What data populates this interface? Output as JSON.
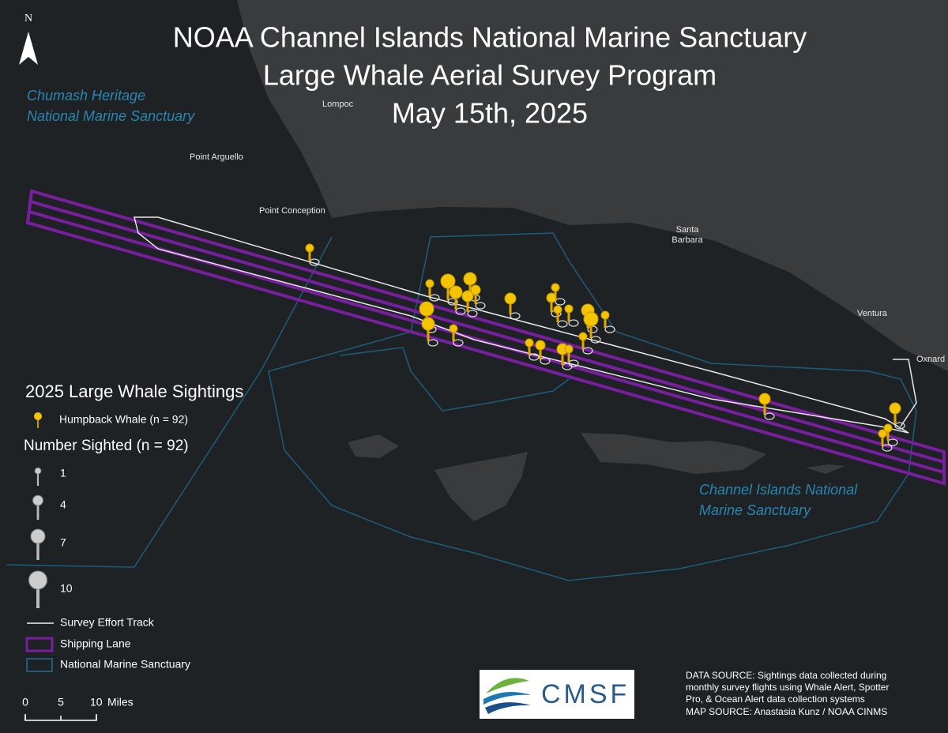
{
  "title": [
    "NOAA Channel Islands National Marine Sanctuary",
    "Large Whale Aerial Survey Program",
    "May 15th, 2025"
  ],
  "north_label": "N",
  "places": {
    "lompoc": "Lompoc",
    "point_arguello": "Point Arguello",
    "point_conception": "Point Conception",
    "santa_barbara": [
      "Santa",
      "Barbara"
    ],
    "ventura": "Ventura",
    "oxnard": "Oxnard"
  },
  "sanctuaries": {
    "chumash": [
      "Chumash Heritage",
      "National Marine Sanctuary"
    ],
    "channel_islands": [
      "Channel Islands National",
      "Marine Sanctuary"
    ]
  },
  "legend": {
    "title": "2025 Large Whale Sightings",
    "species": "Humpback Whale (n = 92)",
    "size_title": "Number Sighted (n = 92)",
    "sizes": [
      1,
      4,
      7,
      10
    ],
    "track": "Survey Effort Track",
    "lane": "Shipping Lane",
    "sanctuary": "National Marine Sanctuary"
  },
  "scale_bar": {
    "ticks": [
      0,
      5,
      10
    ],
    "unit": "Miles"
  },
  "data_source": [
    "DATA SOURCE: Sightings data collected during",
    "monthly survey flights using Whale Alert, Spotter",
    "Pro, & Ocean Alert data collection systems",
    "MAP SOURCE: Anastasia Kunz / NOAA CINMS"
  ],
  "logo": "CMSF"
}
